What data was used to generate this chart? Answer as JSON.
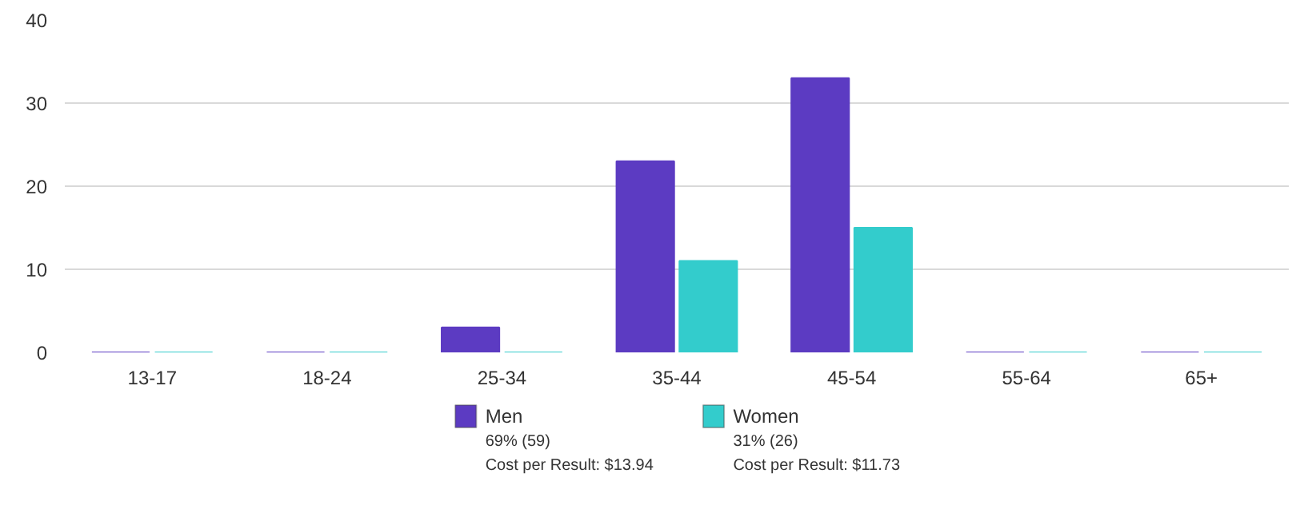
{
  "chart_data": {
    "type": "bar",
    "categories": [
      "13-17",
      "18-24",
      "25-34",
      "35-44",
      "45-54",
      "55-64",
      "65+"
    ],
    "series": [
      {
        "name": "Men",
        "color": "#5c3bc2",
        "values": [
          0,
          0,
          3,
          23,
          33,
          0,
          0
        ]
      },
      {
        "name": "Women",
        "color": "#33cccc",
        "values": [
          0,
          0,
          0,
          11,
          15,
          0,
          0
        ]
      }
    ],
    "ylim": [
      0,
      40
    ],
    "yticks": [
      0,
      10,
      20,
      30,
      40
    ],
    "grid": "y",
    "legend": "bottom",
    "annotations": [
      "69% (59)",
      "Cost per Result: $13.94",
      "31% (26)",
      "Cost per Result: $11.73"
    ]
  }
}
